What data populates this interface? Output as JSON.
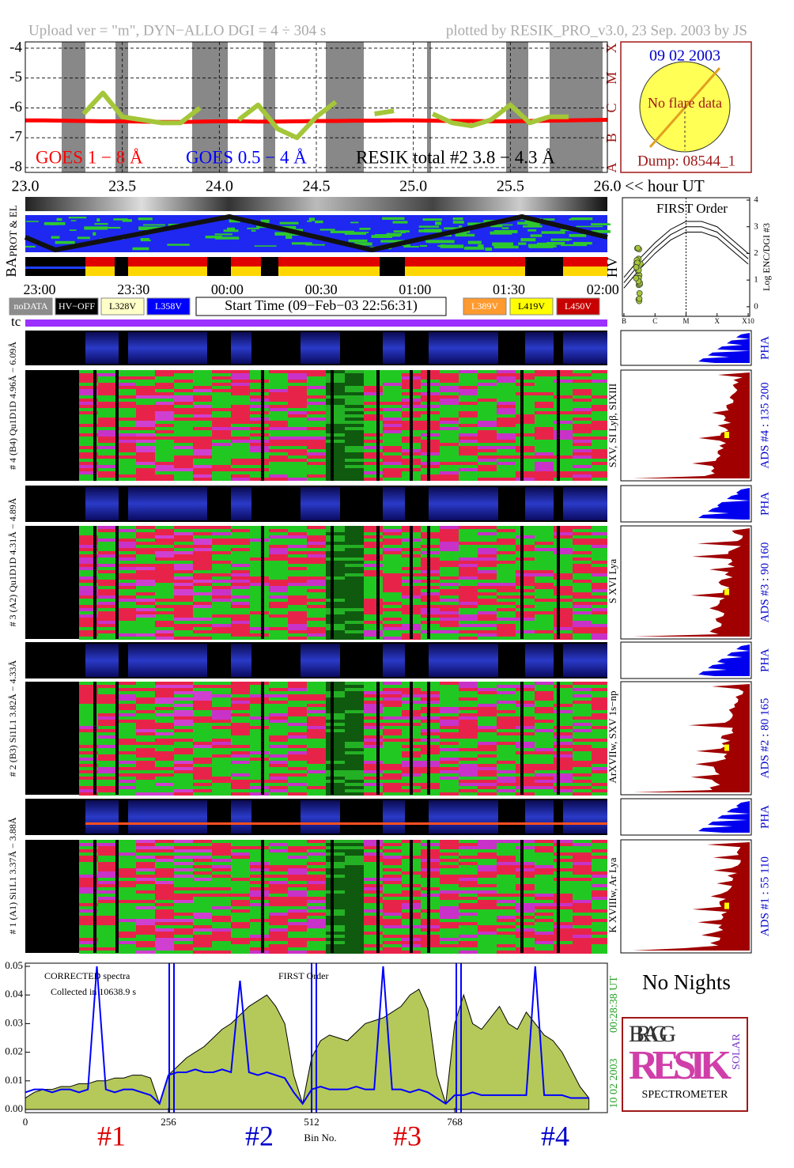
{
  "header": {
    "upload": "Upload ver = \"m\", DYN−ALLO DGI =  4 ÷ 304 s",
    "plotted": "plotted by RESIK_PRO_v3.0, 23 Sep. 2003 by JS"
  },
  "sun": {
    "date": "09 02 2003",
    "status": "No flare data",
    "dump": "Dump: 08544_1"
  },
  "hour_label": "<< hour UT",
  "status_labels": {
    "prot": "PROT & EL",
    "ba": "BA",
    "hv": "HV"
  },
  "time_axis": [
    "23:00",
    "23:30",
    "00:00",
    "00:30",
    "01:00",
    "01:30",
    "02:00"
  ],
  "legend_boxes": [
    {
      "label": "noDATA",
      "color": "#8c8c8c",
      "text_color": "#ffffff"
    },
    {
      "label": "HV−OFF",
      "color": "#000000",
      "text_color": "#ffffff"
    },
    {
      "label": "L328V",
      "color": "#ffffc8",
      "text_color": "#000000"
    },
    {
      "label": "L358V",
      "color": "#0000ff",
      "text_color": "#ffffff"
    },
    {
      "label": "L389V",
      "color": "#ff9a2e",
      "text_color": "#ffffff"
    },
    {
      "label": "L419V",
      "color": "#ffff00",
      "text_color": "#000000"
    },
    {
      "label": "L450V",
      "color": "#c80000",
      "text_color": "#ffffff"
    }
  ],
  "start_time": "Start Time (09−Feb−03 22:56:31)",
  "tc": "tc",
  "channels": [
    {
      "label": "# 4 (B4) Qu1D1D 4.96Å − 6.09Å",
      "lines": "SXV, SI Lyβ, SIXIII",
      "ads": "ADS #4 :  135 200",
      "pha": "PHA"
    },
    {
      "label": "# 3 (A2) Qu1D1D 4.31Å − 4.89Å",
      "lines": "S XVI Lya",
      "ads": "ADS #3 :  90 160",
      "pha": "PHA"
    },
    {
      "label": "# 2 (B3) Si1L1 3.82Å − 4.33Å",
      "lines": "ArXVIIw, SXV 1s−np",
      "ads": "ADS #2 :  80 165",
      "pha": "PHA"
    },
    {
      "label": "# 1 (A1) Si1L1 3.37Å − 3.88Å",
      "lines": "K XVIIIw, Ar Lya",
      "ads": "ADS #1 :  55 110",
      "pha": "PHA"
    }
  ],
  "footer": {
    "no_nights": "No Nights",
    "bin_labels": [
      "#1",
      "#2",
      "#3",
      "#4"
    ],
    "bin_colors": [
      "#dd0000",
      "#0000cc",
      "#dd0000",
      "#0000cc"
    ],
    "ut": "00:28:38 UT",
    "date": "10 02 2003"
  },
  "logo": {
    "bragg": "BRAGG",
    "resik": "RESIK",
    "solar": "SOLAR",
    "spectrometer": "SPECTROMETER"
  },
  "chart_data": [
    {
      "type": "line",
      "x": [
        23.0,
        23.1,
        23.2,
        23.3,
        23.4,
        23.5,
        23.6,
        23.7,
        23.8,
        23.9,
        24.0,
        24.1,
        24.2,
        24.3,
        24.4,
        24.5,
        24.6,
        24.7,
        24.8,
        24.9,
        25.0,
        25.1,
        25.2,
        25.3,
        25.4,
        25.5,
        25.6,
        25.7,
        25.8,
        25.9,
        26.0
      ],
      "series": [
        {
          "name": "GOES 1 − 8 Å",
          "color": "#ff0000",
          "values": [
            -6.42,
            -6.42,
            -6.43,
            -6.44,
            -6.45,
            -6.45,
            -6.46,
            -6.47,
            -6.47,
            -6.46,
            -6.45,
            -6.45,
            -6.46,
            -6.46,
            -6.45,
            -6.44,
            -6.44,
            -6.43,
            -6.43,
            -6.42,
            -6.42,
            -6.43,
            -6.44,
            -6.44,
            -6.45,
            -6.45,
            -6.44,
            -6.43,
            -6.42,
            -6.41,
            -6.4
          ]
        },
        {
          "name": "GOES 0.5 − 4 Å",
          "color": "#0000ff",
          "values": [
            null,
            null,
            null,
            null,
            null,
            null,
            null,
            null,
            null,
            null,
            null,
            null,
            null,
            null,
            null,
            null,
            null,
            null,
            null,
            null,
            null,
            null,
            null,
            null,
            null,
            null,
            null,
            null,
            null,
            null,
            null
          ]
        },
        {
          "name": "RESIK total #2  3.8 − 4.3 Å",
          "color": "#000000",
          "marker_color": "#a4c639",
          "values": [
            null,
            null,
            null,
            -6.2,
            -5.5,
            -6.3,
            -6.4,
            -6.5,
            -6.5,
            -6.0,
            null,
            -6.4,
            -5.9,
            -6.7,
            -7.0,
            -6.3,
            -5.8,
            null,
            -6.2,
            -6.1,
            null,
            -6.2,
            -6.5,
            -6.6,
            -6.4,
            -5.9,
            -6.5,
            -6.3,
            -6.3,
            null,
            -6.2
          ]
        }
      ],
      "xlim": [
        23.0,
        26.0
      ],
      "xticks": [
        {
          "value": 23,
          "label": "23.0"
        },
        {
          "value": 23.5,
          "label": "23.5"
        },
        {
          "value": 24,
          "label": "24.0"
        },
        {
          "value": 24.5,
          "label": "24.5"
        },
        {
          "value": 25,
          "label": "25.0"
        },
        {
          "value": 25.5,
          "label": "25.5"
        },
        {
          "value": 26,
          "label": "26.0"
        }
      ],
      "ylim": [
        -8.16,
        -3.79
      ],
      "yticks": [
        -4,
        -5,
        -6,
        -7,
        -8
      ],
      "y2lim": [
        -8.16,
        -3.79
      ],
      "y2ticks": [
        {
          "value": -8,
          "label": "A"
        },
        {
          "value": -7,
          "label": "B"
        },
        {
          "value": -6,
          "label": "C"
        },
        {
          "value": -5,
          "label": "M"
        },
        {
          "value": -4,
          "label": "X"
        }
      ],
      "grid": true
    },
    {
      "type": "line",
      "title": "FIRST Order",
      "y_label": "Log ENC/DGI #3",
      "x": [
        -7,
        -6.5,
        -6,
        -5.5,
        -5,
        -4.5,
        -4,
        -3.5,
        -3
      ],
      "series": [
        {
          "color": "#000000",
          "values": [
            1.1,
            1.8,
            2.4,
            2.9,
            3.2,
            3.2,
            3.0,
            2.5,
            2.0
          ]
        },
        {
          "color": "#000000",
          "values": [
            0.9,
            1.6,
            2.2,
            2.7,
            3.0,
            3.0,
            2.8,
            2.3,
            1.8
          ]
        },
        {
          "color": "#000000",
          "values": [
            0.7,
            1.4,
            2.0,
            2.5,
            2.8,
            2.8,
            2.6,
            2.1,
            1.6
          ]
        }
      ],
      "xlim": [
        -7.05,
        -2.95
      ],
      "xticks": [
        {
          "value": -7,
          "label": "B"
        },
        {
          "value": -6,
          "label": "C"
        },
        {
          "value": -5,
          "label": "M"
        },
        {
          "value": -4,
          "label": "X"
        },
        {
          "value": -3,
          "label": "X10"
        }
      ],
      "ylim": [
        -0.36,
        4.09
      ],
      "yticks": [
        0,
        1,
        2,
        3,
        4
      ]
    },
    {
      "type": "area",
      "title": "FIRST Order",
      "annotations": [
        "CORRECTED spectra",
        "Collected in 10638.9 s"
      ],
      "x_label": "Bin No.",
      "x": [
        0,
        16,
        32,
        48,
        64,
        80,
        96,
        112,
        128,
        144,
        160,
        176,
        192,
        208,
        224,
        240,
        256,
        272,
        288,
        304,
        320,
        336,
        352,
        368,
        384,
        400,
        416,
        432,
        448,
        464,
        480,
        496,
        512,
        528,
        544,
        560,
        576,
        592,
        608,
        624,
        640,
        656,
        672,
        688,
        704,
        720,
        736,
        752,
        768,
        784,
        800,
        816,
        832,
        848,
        864,
        880,
        896,
        912,
        928,
        944,
        960,
        976,
        992,
        1008
      ],
      "series": [
        {
          "color": "#000000",
          "fill": "#b5c95a",
          "values": [
            0.004,
            0.006,
            0.007,
            0.007,
            0.008,
            0.008,
            0.009,
            0.009,
            0.01,
            0.01,
            0.011,
            0.011,
            0.012,
            0.012,
            0.011,
            0.002,
            0.012,
            0.015,
            0.018,
            0.02,
            0.022,
            0.025,
            0.028,
            0.03,
            0.033,
            0.036,
            0.038,
            0.04,
            0.036,
            0.03,
            0.012,
            0.002,
            0.018,
            0.024,
            0.026,
            0.025,
            0.024,
            0.027,
            0.03,
            0.031,
            0.032,
            0.034,
            0.036,
            0.04,
            0.042,
            0.035,
            0.012,
            0.002,
            0.03,
            0.04,
            0.03,
            0.028,
            0.032,
            0.036,
            0.03,
            0.028,
            0.034,
            0.03,
            0.026,
            0.024,
            0.02,
            0.014,
            0.008,
            0.004
          ]
        },
        {
          "color": "#0000ff",
          "values": [
            0.006,
            0.007,
            0.007,
            0.006,
            0.007,
            0.007,
            0.006,
            0.007,
            0.05,
            0.007,
            0.006,
            0.007,
            0.007,
            0.006,
            0.005,
            0.002,
            0.012,
            0.013,
            0.013,
            0.014,
            0.013,
            0.013,
            0.014,
            0.013,
            0.045,
            0.013,
            0.012,
            0.013,
            0.012,
            0.011,
            0.006,
            0.002,
            0.007,
            0.008,
            0.007,
            0.007,
            0.007,
            0.008,
            0.007,
            0.007,
            0.05,
            0.007,
            0.007,
            0.006,
            0.007,
            0.006,
            0.004,
            0.002,
            0.005,
            0.005,
            0.006,
            0.005,
            0.005,
            0.005,
            0.005,
            0.005,
            0.005,
            0.05,
            0.005,
            0.005,
            0.005,
            0.004,
            0.004,
            0.004
          ]
        }
      ],
      "xlim": [
        0,
        1041
      ],
      "xticks": [
        0,
        256,
        512,
        768
      ],
      "ylim": [
        -0.0011,
        0.0511
      ],
      "yticks": [
        {
          "value": 0,
          "label": "0.00"
        },
        {
          "value": 0.01,
          "label": "0.01"
        },
        {
          "value": 0.02,
          "label": "0.02"
        },
        {
          "value": 0.03,
          "label": "0.03"
        },
        {
          "value": 0.04,
          "label": "0.04"
        },
        {
          "value": 0.05,
          "label": "0.05"
        }
      ]
    }
  ]
}
